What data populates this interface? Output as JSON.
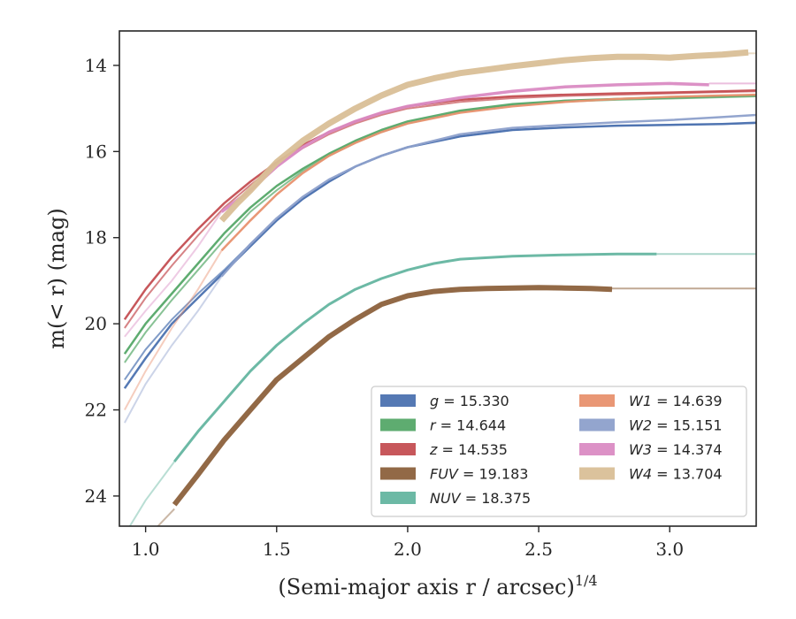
{
  "chart_data": {
    "type": "line",
    "xlabel": "(Semi-major axis r / arcsec)",
    "xlabel_sup": "1/4",
    "ylabel": "m(< r) (mag)",
    "xlim": [
      0.9,
      3.33
    ],
    "ylim": [
      24.7,
      13.2
    ],
    "y_inverted": true,
    "x_ticks": [
      1.0,
      1.5,
      2.0,
      2.5,
      3.0
    ],
    "x_tick_labels": [
      "1.0",
      "1.5",
      "2.0",
      "2.5",
      "3.0"
    ],
    "y_ticks": [
      14,
      16,
      18,
      20,
      22,
      24
    ],
    "y_tick_labels": [
      "14",
      "16",
      "18",
      "20",
      "22",
      "24"
    ],
    "grid": false,
    "legend_position": "lower-right",
    "series": [
      {
        "name": "g = 15.330",
        "var": "g",
        "value": "15.330",
        "color": "#4c72b0",
        "width": 2.5,
        "x": [
          0.92,
          1.0,
          1.1,
          1.2,
          1.3,
          1.4,
          1.5,
          1.6,
          1.7,
          1.8,
          1.9,
          2.0,
          2.2,
          2.4,
          2.6,
          2.8,
          3.0,
          3.2,
          3.33
        ],
        "y": [
          21.5,
          20.8,
          20.0,
          19.4,
          18.8,
          18.2,
          17.6,
          17.1,
          16.7,
          16.35,
          16.1,
          15.9,
          15.65,
          15.5,
          15.44,
          15.4,
          15.38,
          15.36,
          15.33
        ],
        "companion": {
          "x": [
            0.92,
            1.0,
            1.1,
            1.2,
            1.3,
            1.4,
            1.5,
            1.6,
            1.7,
            1.8,
            1.9,
            2.0,
            2.2,
            2.4,
            2.6,
            2.8,
            3.0,
            3.2,
            3.33
          ],
          "y": [
            21.3,
            20.6,
            19.9,
            19.3,
            18.75,
            18.15,
            17.6,
            17.1,
            16.7,
            16.35,
            16.1,
            15.9,
            15.65,
            15.5,
            15.44,
            15.4,
            15.38,
            15.36,
            15.34
          ]
        }
      },
      {
        "name": "r = 14.644",
        "var": "r",
        "value": "14.644",
        "color": "#55a868",
        "width": 2.5,
        "x": [
          0.92,
          1.0,
          1.1,
          1.2,
          1.3,
          1.4,
          1.5,
          1.6,
          1.7,
          1.8,
          1.9,
          2.0,
          2.2,
          2.4,
          2.6,
          2.8,
          3.0,
          3.2,
          3.33
        ],
        "y": [
          20.7,
          20.0,
          19.3,
          18.6,
          17.9,
          17.3,
          16.8,
          16.4,
          16.05,
          15.75,
          15.5,
          15.3,
          15.05,
          14.9,
          14.82,
          14.78,
          14.75,
          14.72,
          14.7
        ],
        "companion": {
          "x": [
            0.92,
            1.0,
            1.1,
            1.2,
            1.3,
            1.4,
            1.5,
            1.6,
            1.7,
            1.8,
            1.9,
            2.0,
            2.2,
            2.4,
            2.6,
            2.8,
            3.0,
            3.2,
            3.33
          ],
          "y": [
            20.9,
            20.2,
            19.45,
            18.75,
            18.05,
            17.4,
            16.9,
            16.45,
            16.1,
            15.8,
            15.55,
            15.35,
            15.08,
            14.92,
            14.84,
            14.8,
            14.77,
            14.74,
            14.72
          ]
        }
      },
      {
        "name": "z = 14.535",
        "var": "z",
        "value": "14.535",
        "color": "#c44e52",
        "width": 2.5,
        "x": [
          0.92,
          1.0,
          1.1,
          1.2,
          1.3,
          1.4,
          1.5,
          1.6,
          1.7,
          1.8,
          1.9,
          2.0,
          2.2,
          2.4,
          2.6,
          2.8,
          3.0,
          3.2,
          3.33
        ],
        "y": [
          19.9,
          19.2,
          18.45,
          17.8,
          17.2,
          16.7,
          16.25,
          15.85,
          15.55,
          15.3,
          15.1,
          14.95,
          14.8,
          14.72,
          14.68,
          14.65,
          14.63,
          14.6,
          14.58
        ],
        "companion": {
          "x": [
            0.92,
            1.0,
            1.1,
            1.2,
            1.3,
            1.4,
            1.5,
            1.6,
            1.7,
            1.8,
            1.9,
            2.0,
            2.2,
            2.4,
            2.6,
            2.8,
            3.0,
            3.2,
            3.33
          ],
          "y": [
            20.1,
            19.4,
            18.65,
            17.95,
            17.3,
            16.78,
            16.3,
            15.92,
            15.6,
            15.35,
            15.15,
            15.0,
            14.85,
            14.76,
            14.71,
            14.68,
            14.65,
            14.62,
            14.6
          ]
        }
      },
      {
        "name": "FUV = 19.183",
        "var": "FUV",
        "value": "19.183",
        "color": "#8c613c",
        "width": 6,
        "x": [
          1.11,
          1.2,
          1.3,
          1.4,
          1.5,
          1.6,
          1.7,
          1.8,
          1.9,
          2.0,
          2.1,
          2.2,
          2.3,
          2.4,
          2.5,
          2.6,
          2.7,
          2.78
        ],
        "y": [
          24.2,
          23.5,
          22.7,
          22.0,
          21.3,
          20.8,
          20.3,
          19.9,
          19.55,
          19.35,
          19.25,
          19.2,
          19.18,
          19.17,
          19.16,
          19.17,
          19.18,
          19.2
        ],
        "extension": {
          "x": [
            0.92,
            1.0,
            1.11
          ],
          "y": [
            25.5,
            25.0,
            24.3
          ],
          "x2": [
            2.78,
            3.33
          ],
          "y2": [
            19.18,
            19.18
          ]
        }
      },
      {
        "name": "NUV = 18.375",
        "var": "NUV",
        "value": "18.375",
        "color": "#64b5a0",
        "width": 3,
        "x": [
          1.11,
          1.2,
          1.3,
          1.4,
          1.5,
          1.6,
          1.7,
          1.8,
          1.9,
          2.0,
          2.1,
          2.2,
          2.4,
          2.6,
          2.8,
          2.95
        ],
        "y": [
          23.2,
          22.5,
          21.8,
          21.1,
          20.5,
          20.0,
          19.55,
          19.2,
          18.95,
          18.75,
          18.6,
          18.5,
          18.43,
          18.4,
          18.38,
          18.38
        ],
        "extension": {
          "x": [
            0.92,
            1.0,
            1.11
          ],
          "y": [
            24.9,
            24.1,
            23.2
          ],
          "x2": [
            2.95,
            3.33
          ],
          "y2": [
            18.38,
            18.38
          ]
        }
      },
      {
        "name": "W1 = 14.639",
        "var": "W1",
        "value": "14.639",
        "color": "#e8916e",
        "width": 2.5,
        "x": [
          1.29,
          1.4,
          1.5,
          1.6,
          1.7,
          1.8,
          1.9,
          2.0,
          2.2,
          2.4,
          2.6,
          2.8,
          3.0,
          3.2,
          3.33
        ],
        "y": [
          18.3,
          17.6,
          17.0,
          16.5,
          16.1,
          15.8,
          15.55,
          15.35,
          15.1,
          14.95,
          14.85,
          14.78,
          14.73,
          14.7,
          14.68
        ],
        "extension": {
          "x": [
            0.92,
            1.0,
            1.1,
            1.2,
            1.29
          ],
          "y": [
            22.0,
            21.1,
            20.1,
            19.2,
            18.3
          ]
        }
      },
      {
        "name": "W2 = 15.151",
        "var": "W2",
        "value": "15.151",
        "color": "#8da0cb",
        "width": 2.5,
        "x": [
          1.29,
          1.4,
          1.5,
          1.6,
          1.7,
          1.8,
          1.9,
          2.0,
          2.2,
          2.4,
          2.6,
          2.8,
          3.0,
          3.2,
          3.33
        ],
        "y": [
          18.9,
          18.15,
          17.55,
          17.05,
          16.65,
          16.35,
          16.1,
          15.9,
          15.6,
          15.45,
          15.38,
          15.32,
          15.27,
          15.2,
          15.15
        ],
        "extension": {
          "x": [
            0.92,
            1.0,
            1.1,
            1.2,
            1.29
          ],
          "y": [
            22.3,
            21.4,
            20.5,
            19.7,
            18.9
          ]
        }
      },
      {
        "name": "W3 = 14.374",
        "var": "W3",
        "value": "14.374",
        "color": "#da8bc3",
        "width": 3.5,
        "x": [
          1.29,
          1.4,
          1.5,
          1.6,
          1.7,
          1.8,
          1.9,
          2.0,
          2.2,
          2.4,
          2.6,
          2.8,
          3.0,
          3.15
        ],
        "y": [
          17.4,
          16.9,
          16.35,
          15.9,
          15.55,
          15.3,
          15.1,
          14.95,
          14.75,
          14.6,
          14.5,
          14.45,
          14.42,
          14.45
        ],
        "extension": {
          "x": [
            0.92,
            1.0,
            1.1,
            1.2,
            1.29
          ],
          "y": [
            20.3,
            19.7,
            19.0,
            18.2,
            17.4
          ],
          "x2": [
            3.15,
            3.33
          ],
          "y2": [
            14.42,
            14.42
          ]
        }
      },
      {
        "name": "W4 = 13.704",
        "var": "W4",
        "value": "13.704",
        "color": "#d9bf97",
        "width": 7,
        "x": [
          1.29,
          1.35,
          1.4,
          1.5,
          1.6,
          1.7,
          1.8,
          1.9,
          2.0,
          2.1,
          2.2,
          2.3,
          2.4,
          2.5,
          2.6,
          2.7,
          2.8,
          2.9,
          3.0,
          3.1,
          3.2,
          3.3
        ],
        "y": [
          17.6,
          17.2,
          16.9,
          16.25,
          15.75,
          15.35,
          15.0,
          14.7,
          14.45,
          14.3,
          14.18,
          14.1,
          14.02,
          13.95,
          13.88,
          13.83,
          13.8,
          13.8,
          13.82,
          13.78,
          13.75,
          13.7
        ],
        "extension": {
          "x2": [
            3.3,
            3.33
          ],
          "y2": [
            13.72,
            13.72
          ]
        }
      }
    ],
    "legend": {
      "columns": [
        [
          {
            "var": "g",
            "value": "15.330",
            "color": "#4c72b0"
          },
          {
            "var": "r",
            "value": "14.644",
            "color": "#55a868"
          },
          {
            "var": "z",
            "value": "14.535",
            "color": "#c44e52"
          },
          {
            "var": "FUV",
            "value": "19.183",
            "color": "#8c613c"
          },
          {
            "var": "NUV",
            "value": "18.375",
            "color": "#64b5a0"
          }
        ],
        [
          {
            "var": "W1",
            "value": "14.639",
            "color": "#e8916e"
          },
          {
            "var": "W2",
            "value": "15.151",
            "color": "#8da0cb"
          },
          {
            "var": "W3",
            "value": "14.374",
            "color": "#da8bc3"
          },
          {
            "var": "W4",
            "value": "13.704",
            "color": "#d9bf97"
          }
        ]
      ]
    }
  }
}
